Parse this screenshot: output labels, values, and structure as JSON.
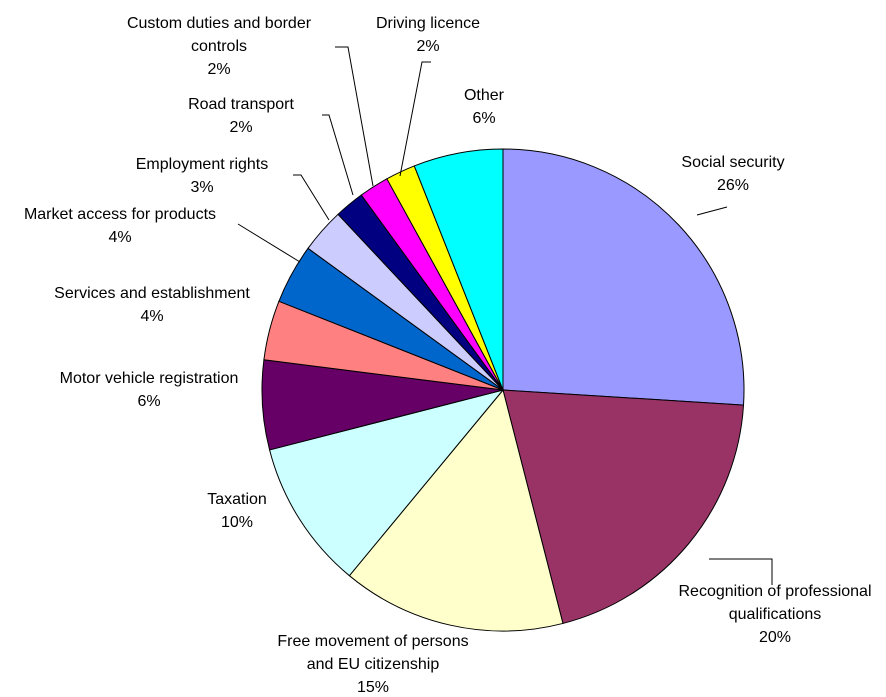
{
  "chart_data": {
    "type": "pie",
    "title": "",
    "legend": "none",
    "slices": [
      {
        "label": [
          "Social security"
        ],
        "value": 26,
        "display": "26%",
        "color": "#9999FF"
      },
      {
        "label": [
          "Recognition of professional",
          "qualifications"
        ],
        "value": 20,
        "display": "20%",
        "color": "#993366"
      },
      {
        "label": [
          "Free movement of persons",
          "and EU citizenship"
        ],
        "value": 15,
        "display": "15%",
        "color": "#FFFFCC"
      },
      {
        "label": [
          "Taxation"
        ],
        "value": 10,
        "display": "10%",
        "color": "#CCFFFF"
      },
      {
        "label": [
          "Motor vehicle registration"
        ],
        "value": 6,
        "display": "6%",
        "color": "#660066"
      },
      {
        "label": [
          "Services and establishment"
        ],
        "value": 4,
        "display": "4%",
        "color": "#FF8080"
      },
      {
        "label": [
          "Market access for products"
        ],
        "value": 4,
        "display": "4%",
        "color": "#0066CC"
      },
      {
        "label": [
          "Employment rights"
        ],
        "value": 3,
        "display": "3%",
        "color": "#CCCCFF"
      },
      {
        "label": [
          "Road transport"
        ],
        "value": 2,
        "display": "2%",
        "color": "#000080"
      },
      {
        "label": [
          "Custom duties and border",
          "controls"
        ],
        "value": 2,
        "display": "2%",
        "color": "#FF00FF"
      },
      {
        "label": [
          "Driving licence"
        ],
        "value": 2,
        "display": "2%",
        "color": "#FFFF00"
      },
      {
        "label": [
          "Other"
        ],
        "value": 6,
        "display": "6%",
        "color": "#00FFFF"
      }
    ]
  }
}
